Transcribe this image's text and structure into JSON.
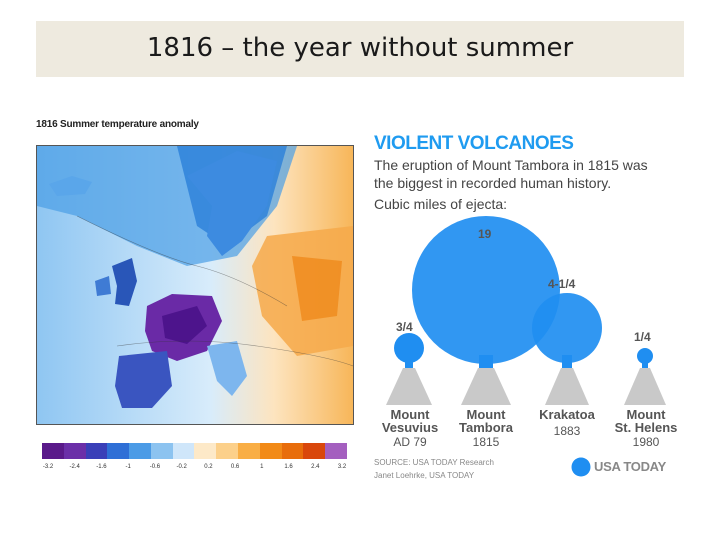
{
  "slide": {
    "title": "1816 – the year without summer"
  },
  "map": {
    "caption": "1816 Summer temperature anomaly",
    "colorbar_ticks": [
      "-3.2",
      "-2.4",
      "-1.6",
      "-1",
      "-0.6",
      "-0.2",
      "0.2",
      "0.6",
      "1",
      "1.6",
      "2.4",
      "3.2"
    ],
    "colorbar_colors": [
      "#5a1a8a",
      "#6b2fa8",
      "#3a3fb8",
      "#2f6fd6",
      "#4b9be6",
      "#8cc3f0",
      "#cfe6fa",
      "#fde9c8",
      "#fcd08a",
      "#f9ae45",
      "#f28a17",
      "#e86d0b",
      "#d9470b",
      "#a45fbf"
    ]
  },
  "infographic": {
    "heading": "VIOLENT VOLCANOES",
    "subtitle_line1": "The eruption of Mount Tambora in 1815 was",
    "subtitle_line2": "the biggest in recorded human history.",
    "unit_label": "Cubic miles of ejecta:",
    "accent_color": "#1f9bf0",
    "volcanoes": [
      {
        "name_line1": "Mount",
        "name_line2": "Vesuvius",
        "year": "AD 79",
        "value_label": "3/4",
        "value": 0.75
      },
      {
        "name_line1": "Mount",
        "name_line2": "Tambora",
        "year": "1815",
        "value_label": "19",
        "value": 19
      },
      {
        "name_line1": "Krakatoa",
        "name_line2": "",
        "year": "1883",
        "value_label": "4-1/4",
        "value": 4.25
      },
      {
        "name_line1": "Mount",
        "name_line2": "St. Helens",
        "year": "1980",
        "value_label": "1/4",
        "value": 0.25
      }
    ],
    "source_line1": "SOURCE: USA TODAY Research",
    "source_line2": "Janet Loehrke, USA TODAY",
    "brand": "USA TODAY"
  }
}
